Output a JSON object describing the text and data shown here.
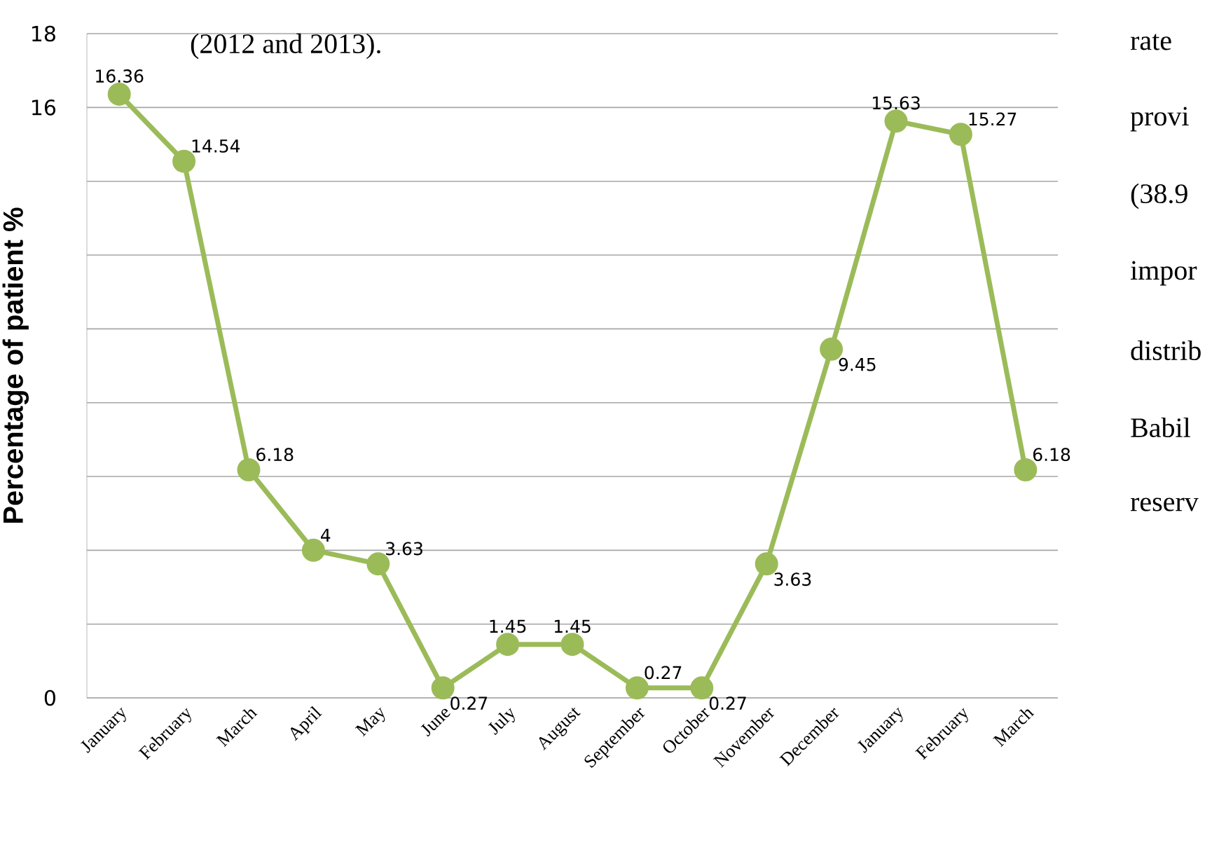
{
  "chart_data": {
    "type": "line",
    "ylabel": "Percentage of patient %",
    "categories": [
      "January",
      "February",
      "March",
      "April",
      "May",
      "June",
      "July",
      "August",
      "September",
      "October",
      "November",
      "December",
      "January",
      "February",
      "March"
    ],
    "series": [
      {
        "color": "#9bbb59",
        "values": [
          16.36,
          14.54,
          6.18,
          4,
          3.63,
          0.27,
          1.45,
          1.45,
          0.27,
          0.27,
          3.63,
          9.45,
          15.63,
          15.27,
          6.18
        ]
      }
    ],
    "ylim": [
      0,
      18
    ],
    "yticks": [
      0,
      {
        "value": 2,
        "label": null
      },
      {
        "value": 4,
        "label": null
      },
      {
        "value": 6,
        "label": null
      },
      {
        "value": 8,
        "label": null
      },
      {
        "value": 10,
        "label": null
      },
      {
        "value": 12,
        "label": null
      },
      {
        "value": 14,
        "label": null
      },
      {
        "value": 16,
        "label": "16"
      },
      18
    ],
    "grid": "y",
    "marker": "circle",
    "line_style": "solid",
    "data_labels": true,
    "annotations": [
      "(2012 and 2013).",
      "rate",
      "provi",
      "(38.9",
      "impor",
      "distrib",
      "Babil",
      "reserv"
    ]
  }
}
